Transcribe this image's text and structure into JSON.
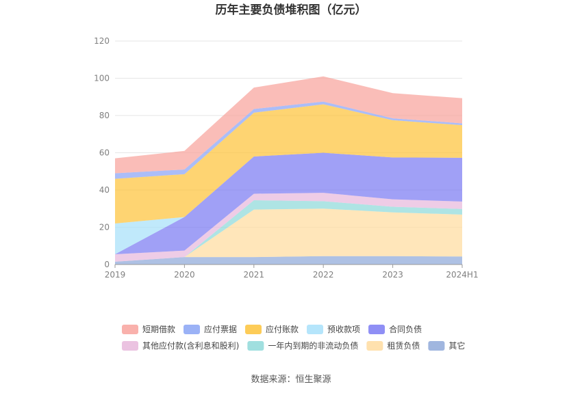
{
  "chart_data": {
    "type": "area",
    "stacked": true,
    "title": "历年主要负债堆积图（亿元）",
    "categories": [
      "2019",
      "2020",
      "2021",
      "2022",
      "2023",
      "2024H1"
    ],
    "y_ticks": [
      "0",
      "20",
      "40",
      "60",
      "80",
      "100",
      "120"
    ],
    "ylim": [
      0,
      120
    ],
    "grid": true,
    "legend_position": "bottom",
    "series": [
      {
        "name": "其它",
        "color": "#8fa9d9",
        "values": [
          1.5,
          4,
          4,
          4.5,
          4.5,
          4.3
        ]
      },
      {
        "name": "租赁负债",
        "color": "#ffdca0",
        "values": [
          0,
          0,
          25.5,
          25.5,
          23.5,
          22.5
        ]
      },
      {
        "name": "一年内到期的非流动负债",
        "color": "#8fd9d9",
        "values": [
          0,
          0,
          5,
          4,
          3,
          3
        ]
      },
      {
        "name": "其他应付款(含利息和股利)",
        "color": "#e8b8dc",
        "values": [
          4,
          3.5,
          3.5,
          4.5,
          4,
          4
        ]
      },
      {
        "name": "合同负债",
        "color": "#7b7bf3",
        "values": [
          0,
          18,
          20,
          21.5,
          22.5,
          23.5
        ]
      },
      {
        "name": "预收款项",
        "color": "#a8e0fa",
        "values": [
          16.5,
          0,
          0,
          0,
          0,
          0
        ]
      },
      {
        "name": "应付账款",
        "color": "#fdc33b",
        "values": [
          24,
          23,
          23.5,
          26,
          20,
          17.5
        ]
      },
      {
        "name": "应付票据",
        "color": "#8aa4f5",
        "values": [
          3,
          2.5,
          2,
          1.5,
          1,
          1
        ]
      },
      {
        "name": "短期借款",
        "color": "#f8a39d",
        "values": [
          8,
          10,
          11.5,
          13.5,
          13.5,
          13.5
        ]
      }
    ]
  },
  "legend_rows": [
    [
      "短期借款",
      "应付票据",
      "应付账款",
      "预收款项",
      "合同负债"
    ],
    [
      "其他应付款(含利息和股利)",
      "一年内到期的非流动负债",
      "租赁负债",
      "其它"
    ]
  ],
  "source_text": "数据来源：恒生聚源"
}
